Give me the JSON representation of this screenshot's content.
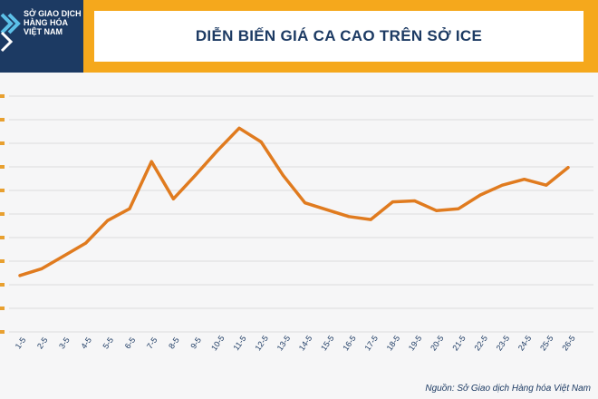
{
  "header": {
    "logo_lines": [
      "SỞ GIAO DỊCH",
      "HÀNG HÓA",
      "VIỆT NAM"
    ],
    "title": "DIỄN BIẾN GIÁ CA CAO TRÊN SỞ ICE",
    "background_color": "#f5a81c",
    "logo_color": "#1c3a63",
    "logo_accent_color": "#5cc0e8"
  },
  "source": "Nguồn: Sở Giao dịch Hàng hóa Việt Nam",
  "chart_data": {
    "type": "line",
    "title": "DIỄN BIẾN GIÁ CA CAO TRÊN SỞ ICE",
    "xlabel": "",
    "ylabel": "",
    "categories": [
      "1-5",
      "2-5",
      "3-5",
      "4-5",
      "5-5",
      "6-5",
      "7-5",
      "8-5",
      "9-5",
      "10-5",
      "11-5",
      "12-5",
      "13-5",
      "14-5",
      "15-5",
      "16-5",
      "17-5",
      "18-5",
      "19-5",
      "20-5",
      "21-5",
      "22-5",
      "23-5",
      "24-5",
      "25-5",
      "26-5"
    ],
    "series": [
      {
        "values": [
          8200,
          8270,
          8400,
          8530,
          8760,
          8880,
          9360,
          8980,
          9220,
          9470,
          9700,
          9560,
          9220,
          8940,
          8870,
          8800,
          8770,
          8950,
          8960,
          8860,
          8880,
          9020,
          9120,
          9180,
          9120,
          9300
        ],
        "color": "#e07b1f"
      }
    ],
    "y_ticks_visible": false,
    "grid": "horizontal",
    "legend": "none"
  }
}
